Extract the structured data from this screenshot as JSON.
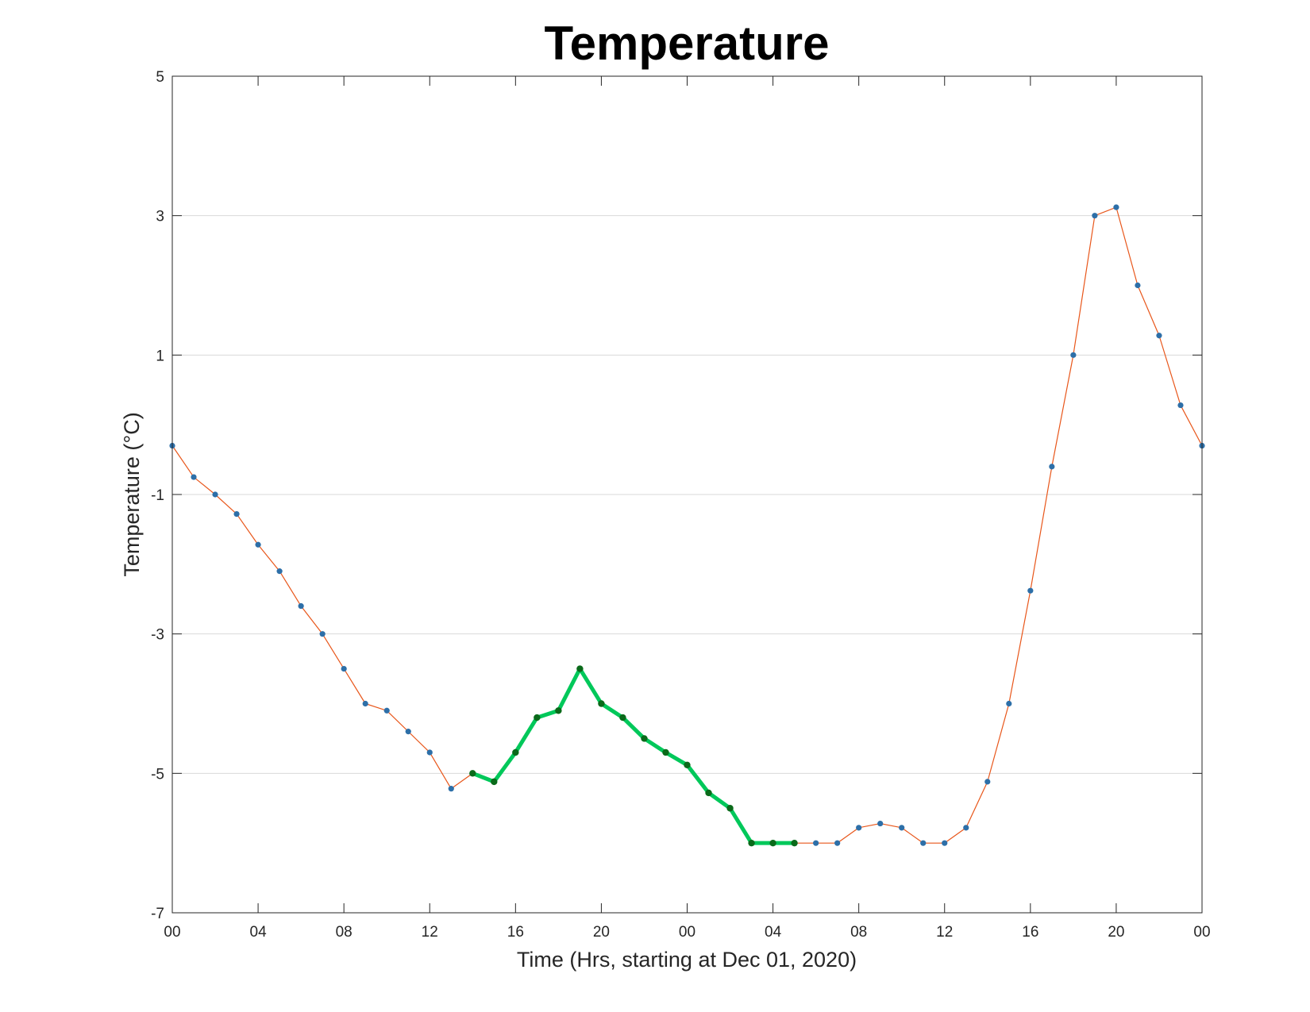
{
  "chart_data": {
    "type": "line",
    "title": "Temperature",
    "xlabel": "Time (Hrs, starting at Dec 01, 2020)",
    "ylabel": "Temperature (°C)",
    "xlim": [
      "Dec 01, 2020 00:00",
      "Dec 03, 2020 00:00"
    ],
    "ylim": [
      -7,
      5
    ],
    "x_tick_labels": [
      "00",
      "04",
      "08",
      "12",
      "16",
      "20",
      "00",
      "04",
      "08",
      "12",
      "16",
      "20",
      "00"
    ],
    "y_tick_labels": [
      "-7",
      "-5",
      "-3",
      "-1",
      "1",
      "3",
      "5"
    ],
    "grid": "y",
    "x_interval": "1 hour, 49 hourly readings from Dec 01, 2020 00:00 through Dec 03, 2020 00:00",
    "series": [
      {
        "color": "#e8561a",
        "marker_color": "#2d6fa8",
        "values": [
          -0.3,
          -0.75,
          -1.0,
          -1.28,
          -1.72,
          -2.1,
          -2.6,
          -3.0,
          -3.5,
          -4.0,
          -4.1,
          -4.4,
          -4.7,
          -5.22,
          -5.0,
          -5.12,
          -4.7,
          -4.2,
          -4.1,
          -3.5,
          -4.0,
          -4.2,
          -4.5,
          -4.7,
          -4.88,
          -5.28,
          -5.5,
          -6.0,
          -6.0,
          -6.0,
          -6.0,
          -6.0,
          -5.78,
          -5.72,
          -5.78,
          -6.0,
          -6.0,
          -5.78,
          -5.12,
          -4.0,
          -2.38,
          -0.6,
          1.0,
          3.0,
          3.12,
          2.0,
          1.28,
          0.28,
          -0.3
        ]
      },
      {
        "color": "#00c85a",
        "marker_color": "#0a6a1a",
        "start_index": 14,
        "values": [
          -5.0,
          -5.12,
          -4.7,
          -4.2,
          -4.1,
          -3.5,
          -4.0,
          -4.2,
          -4.5,
          -4.7,
          -4.88,
          -5.28,
          -5.5,
          -6.0,
          -6.0,
          -6.0
        ]
      }
    ]
  }
}
